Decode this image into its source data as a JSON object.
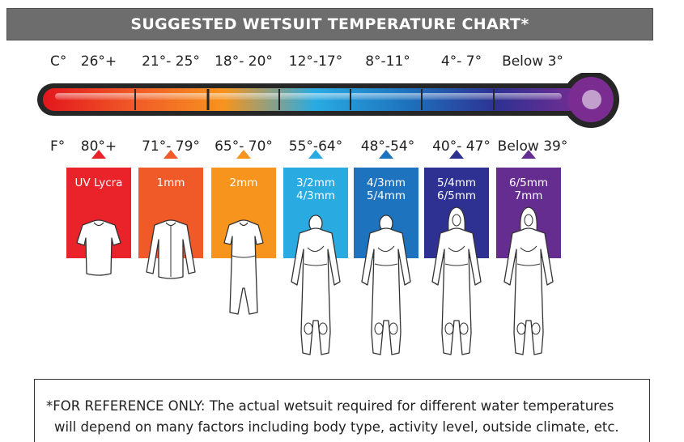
{
  "title": "SUGGESTED WETSUIT TEMPERATURE CHART*",
  "celsius": {
    "unit": "C°",
    "ranges": [
      "26°+",
      "21°- 25°",
      "18°- 20°",
      "12°-17°",
      "8°-11°",
      "4°- 7°",
      "Below 3°"
    ]
  },
  "fahrenheit": {
    "unit": "F°",
    "ranges": [
      "80°+",
      "71°- 79°",
      "65°- 70°",
      "55°-64°",
      "48°-54°",
      "40°- 47°",
      "Below 39°"
    ]
  },
  "suits": [
    {
      "label_lines": [
        "UV Lycra"
      ],
      "color": "#ea2229",
      "suit": "shirt-short"
    },
    {
      "label_lines": [
        "1mm"
      ],
      "color": "#f05a28",
      "suit": "shirt-long"
    },
    {
      "label_lines": [
        "2mm"
      ],
      "color": "#f7941d",
      "suit": "springsuit"
    },
    {
      "label_lines": [
        "3/2mm",
        "4/3mm"
      ],
      "color": "#29abe2",
      "suit": "fullsuit"
    },
    {
      "label_lines": [
        "4/3mm",
        "5/4mm"
      ],
      "color": "#1e73be",
      "suit": "fullsuit"
    },
    {
      "label_lines": [
        "5/4mm",
        "6/5mm"
      ],
      "color": "#2e3192",
      "suit": "hooded"
    },
    {
      "label_lines": [
        "6/5mm",
        "7mm"
      ],
      "color": "#662d91",
      "suit": "hooded"
    }
  ],
  "colors": {
    "header_bg": "#6d6d6d",
    "thermo_gradient": [
      "#e3161d",
      "#f05a28",
      "#f7941d",
      "#29abe2",
      "#1e73be",
      "#2e3192",
      "#7b2c91"
    ],
    "bulb": "#7b2c91"
  },
  "footnote": {
    "line1": "*FOR REFERENCE ONLY: The actual wetsuit required for different water temperatures",
    "line2": "will depend on many factors including body type, activity level, outside climate, etc."
  }
}
